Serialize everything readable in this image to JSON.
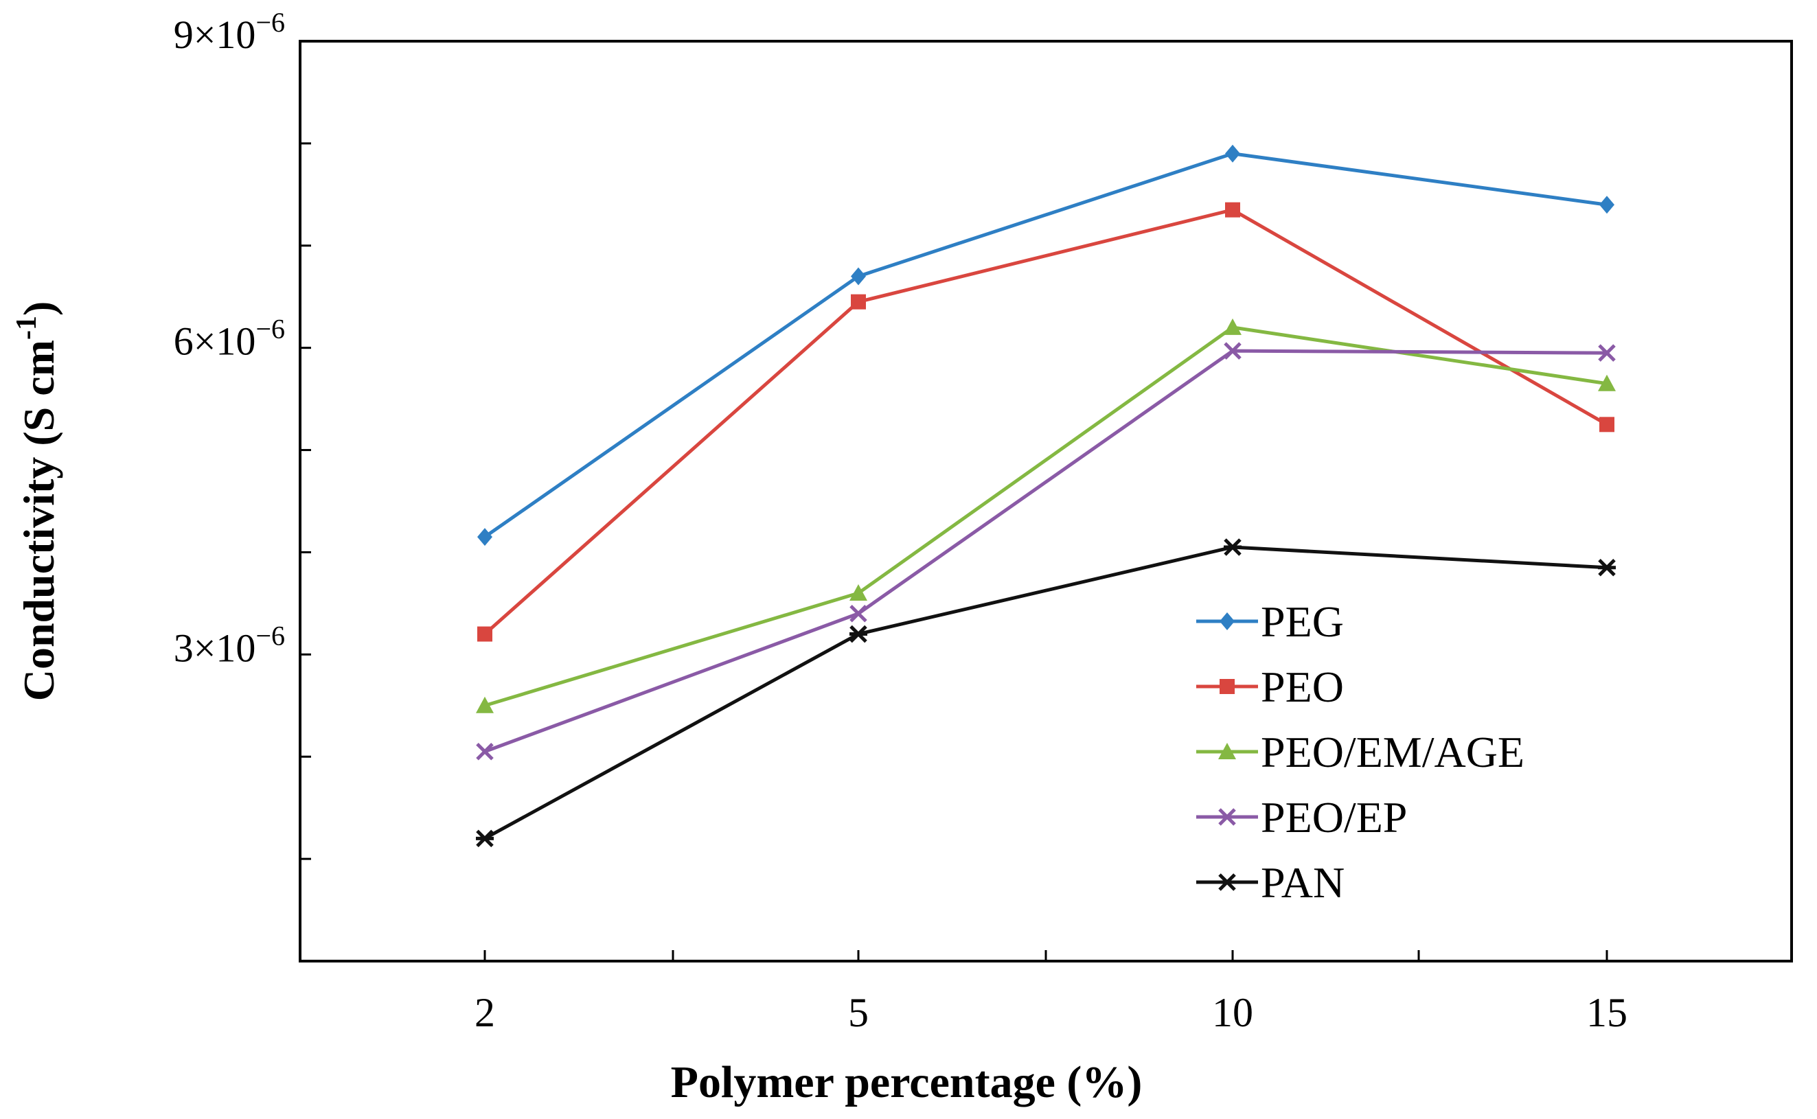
{
  "chart_data": {
    "type": "line",
    "title": "",
    "xlabel": "Polymer percentage (%)",
    "ylabel_main": "Conductivity (S cm",
    "ylabel_sup": "-1",
    "ylabel_close": ")",
    "categories": [
      "2",
      "5",
      "10",
      "15"
    ],
    "ylim": [
      0,
      9e-06
    ],
    "y_minor_step": 1e-06,
    "y_tick_labels": [
      {
        "value": 9e-06,
        "base": "9×10",
        "exp": "−6"
      },
      {
        "value": 6e-06,
        "base": "6×10",
        "exp": "−6"
      },
      {
        "value": 3e-06,
        "base": "3×10",
        "exp": "−6"
      }
    ],
    "grid": false,
    "legend_position": "bottom-right",
    "series": [
      {
        "name": "PEG",
        "color": "#2e7fc4",
        "marker": "diamond",
        "values": [
          4.15e-06,
          6.7e-06,
          7.9e-06,
          7.4e-06
        ]
      },
      {
        "name": "PEO",
        "color": "#d9463f",
        "marker": "square",
        "values": [
          3.2e-06,
          6.45e-06,
          7.35e-06,
          5.25e-06
        ]
      },
      {
        "name": "PEO/EM/AGE",
        "color": "#84b842",
        "marker": "triangle",
        "values": [
          2.5e-06,
          3.6e-06,
          6.2e-06,
          5.65e-06
        ]
      },
      {
        "name": "PEO/EP",
        "color": "#8a5aa6",
        "marker": "x",
        "values": [
          2.05e-06,
          3.4e-06,
          5.97e-06,
          5.95e-06
        ]
      },
      {
        "name": "PAN",
        "color": "#111111",
        "marker": "star",
        "values": [
          1.2e-06,
          3.2e-06,
          4.05e-06,
          3.85e-06
        ]
      }
    ]
  }
}
